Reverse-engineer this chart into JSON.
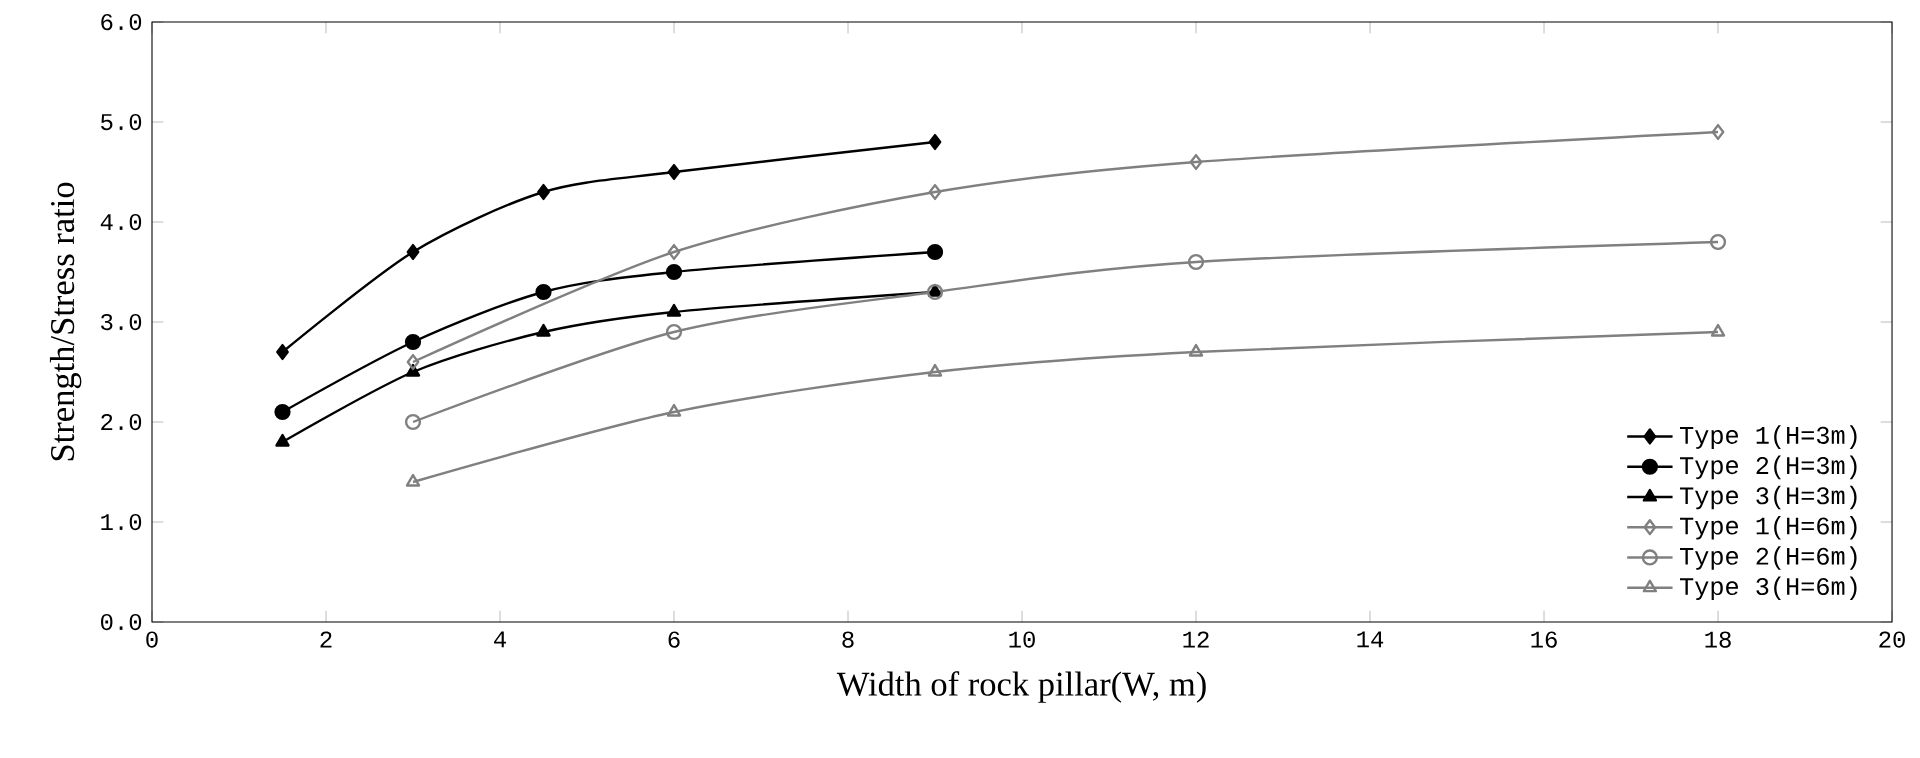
{
  "chart_data": {
    "type": "line",
    "xlabel": "Width of rock pillar(W, m)",
    "ylabel": "Strength/Stress ratio",
    "xlim": [
      0,
      20
    ],
    "xticks": [
      0,
      2,
      4,
      6,
      8,
      10,
      12,
      14,
      16,
      18,
      20
    ],
    "ylim": [
      0,
      6
    ],
    "yticks": [
      {
        "value": 0,
        "label": "0.0"
      },
      {
        "value": 1,
        "label": "1.0"
      },
      {
        "value": 2,
        "label": "2.0"
      },
      {
        "value": 3,
        "label": "3.0"
      },
      {
        "value": 4,
        "label": "4.0"
      },
      {
        "value": 5,
        "label": "5.0"
      },
      {
        "value": 6,
        "label": "6.0"
      }
    ],
    "grid": false,
    "legend": "bottom right",
    "line_style": "solid",
    "series": [
      {
        "name": "Type 1(H=3m)",
        "color": "#000000",
        "marker": "diamond",
        "x": [
          1.5,
          3,
          4.5,
          6,
          9
        ],
        "values": [
          2.7,
          3.7,
          4.3,
          4.5,
          4.8
        ]
      },
      {
        "name": "Type 2(H=3m)",
        "color": "#000000",
        "marker": "circle",
        "x": [
          1.5,
          3,
          4.5,
          6,
          9
        ],
        "values": [
          2.1,
          2.8,
          3.3,
          3.5,
          3.7
        ]
      },
      {
        "name": "Type 3(H=3m)",
        "color": "#000000",
        "marker": "triangle",
        "x": [
          1.5,
          3,
          4.5,
          6,
          9
        ],
        "values": [
          1.8,
          2.5,
          2.9,
          3.1,
          3.3
        ]
      },
      {
        "name": "Type 1(H=6m)",
        "color": "#808080",
        "marker": "diamond",
        "x": [
          3,
          6,
          9,
          12,
          18
        ],
        "values": [
          2.6,
          3.7,
          4.3,
          4.6,
          4.9
        ]
      },
      {
        "name": "Type 2(H=6m)",
        "color": "#808080",
        "marker": "circle",
        "x": [
          3,
          6,
          9,
          12,
          18
        ],
        "values": [
          2.0,
          2.9,
          3.3,
          3.6,
          3.8
        ]
      },
      {
        "name": "Type 3(H=6m)",
        "color": "#808080",
        "marker": "triangle",
        "x": [
          3,
          6,
          9,
          12,
          18
        ],
        "values": [
          1.4,
          2.1,
          2.5,
          2.7,
          2.9
        ]
      }
    ]
  }
}
